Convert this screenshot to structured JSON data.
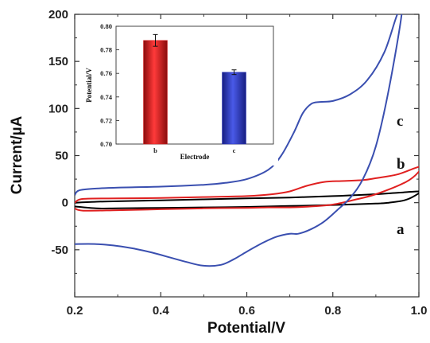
{
  "chart_data": [
    {
      "type": "line",
      "xlabel": "Potential/V",
      "ylabel": "Current/µA",
      "xlim": [
        0.2,
        1.0
      ],
      "ylim": [
        -100,
        200
      ],
      "xticks": [
        "0.2",
        "0.4",
        "0.6",
        "0.8",
        "1.0"
      ],
      "yticks": [
        "-50",
        "0",
        "50",
        "100",
        "150",
        "200"
      ],
      "ytick_values": [
        -50,
        0,
        50,
        100,
        150,
        200
      ],
      "xtick_values": [
        0.2,
        0.4,
        0.6,
        0.8,
        1.0
      ],
      "grid": false,
      "series": [
        {
          "name": "a",
          "color": "#000000",
          "x": [
            0.2,
            0.25,
            0.3,
            0.4,
            0.5,
            0.6,
            0.7,
            0.8,
            0.85,
            0.9,
            0.95,
            1.0,
            1.0,
            0.97,
            0.93,
            0.9,
            0.8,
            0.7,
            0.6,
            0.5,
            0.4,
            0.3,
            0.25,
            0.2
          ],
          "y": [
            0,
            1,
            1.5,
            2.5,
            3.5,
            4.5,
            5.5,
            7,
            8,
            9,
            10.5,
            12,
            10,
            3,
            0,
            -1,
            -2.5,
            -3.5,
            -4.5,
            -5,
            -5.5,
            -6,
            -6,
            -4
          ]
        },
        {
          "name": "b",
          "color": "#e02020",
          "x": [
            0.2,
            0.22,
            0.3,
            0.4,
            0.5,
            0.6,
            0.66,
            0.7,
            0.74,
            0.78,
            0.82,
            0.87,
            0.9,
            0.95,
            1.0,
            1.0,
            0.97,
            0.9,
            0.85,
            0.8,
            0.75,
            0.7,
            0.65,
            0.6,
            0.5,
            0.4,
            0.3,
            0.22,
            0.2
          ],
          "y": [
            0,
            4,
            4.5,
            5,
            6,
            7,
            9,
            12,
            18,
            22,
            23,
            24,
            26,
            30,
            38,
            33,
            22,
            9,
            3,
            -2,
            -4,
            -5,
            -5,
            -5.5,
            -6,
            -7,
            -8,
            -8.5,
            -6
          ]
        },
        {
          "name": "c",
          "color": "#3a4fb0",
          "x": [
            0.2,
            0.21,
            0.25,
            0.3,
            0.4,
            0.5,
            0.55,
            0.6,
            0.65,
            0.68,
            0.71,
            0.73,
            0.75,
            0.77,
            0.8,
            0.84,
            0.88,
            0.92,
            0.95,
            0.96,
            0.93,
            0.9,
            0.87,
            0.84,
            0.81,
            0.78,
            0.75,
            0.72,
            0.7,
            0.67,
            0.64,
            0.6,
            0.57,
            0.54,
            0.5,
            0.46,
            0.42,
            0.38,
            0.34,
            0.3,
            0.25,
            0.2
          ],
          "y": [
            8,
            13,
            15,
            16,
            17,
            19,
            21,
            25,
            35,
            50,
            75,
            95,
            105,
            107,
            108,
            115,
            130,
            160,
            200,
            200,
            120,
            60,
            25,
            5,
            -8,
            -20,
            -28,
            -33,
            -33,
            -36,
            -42,
            -52,
            -60,
            -66,
            -67,
            -63,
            -58,
            -53,
            -49,
            -46,
            -44,
            -44
          ]
        }
      ],
      "curve_labels": [
        "a",
        "b",
        "c"
      ]
    },
    {
      "type": "bar",
      "xlabel": "Electrode",
      "ylabel": "Potential/V",
      "categories": [
        "b",
        "c"
      ],
      "values": [
        0.788,
        0.761
      ],
      "errors": [
        0.005,
        0.002
      ],
      "colors": [
        "#e02020",
        "#2a35c0"
      ],
      "ylim": [
        0.7,
        0.8
      ],
      "ytick_values": [
        0.7,
        0.72,
        0.74,
        0.76,
        0.78,
        0.8
      ],
      "yticks": [
        "0.70",
        "0.72",
        "0.74",
        "0.76",
        "0.78",
        "0.80"
      ]
    }
  ]
}
